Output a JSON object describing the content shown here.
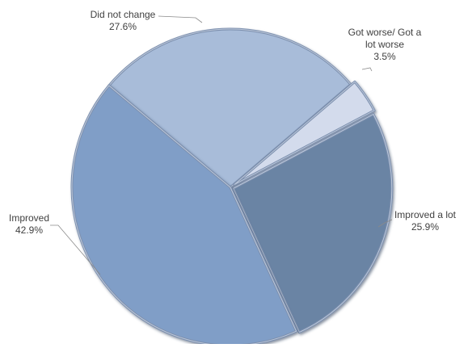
{
  "chart_data": {
    "type": "pie",
    "title": "",
    "series": [
      {
        "values": [
          27.6,
          3.5,
          25.9,
          42.9
        ]
      }
    ],
    "slices": [
      {
        "label_lines": [
          "Did not change"
        ],
        "value_text": "27.6%",
        "value": 27.6,
        "color": "#a8bcd9"
      },
      {
        "label_lines": [
          "Got worse/ Got a",
          "lot worse"
        ],
        "value_text": "3.5%",
        "value": 3.5,
        "color": "#d3dbec"
      },
      {
        "label_lines": [
          "Improved a lot"
        ],
        "value_text": "25.9%",
        "value": 25.9,
        "color": "#6a84a4"
      },
      {
        "label_lines": [
          "Improved"
        ],
        "value_text": "42.9%",
        "value": 42.9,
        "color": "#809ec7"
      }
    ],
    "start_angle_deg": -50,
    "direction": "clockwise",
    "legend": "none",
    "data_labels": "outside with leader lines"
  }
}
